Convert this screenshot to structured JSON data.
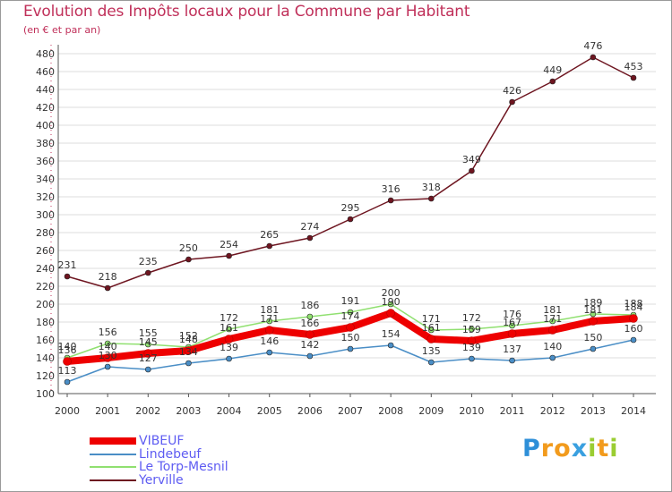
{
  "header": {
    "title": "Evolution des Impôts locaux pour la Commune par Habitant",
    "subtitle": "(en € et par an)"
  },
  "chart_data": {
    "type": "line",
    "title": "Evolution des Impôts locaux pour la Commune par Habitant",
    "subtitle": "(en € et par an)",
    "xlabel": "",
    "ylabel": "",
    "ylim": [
      100,
      480
    ],
    "yticks": [
      100,
      120,
      140,
      160,
      180,
      200,
      220,
      240,
      260,
      280,
      300,
      320,
      340,
      360,
      380,
      400,
      420,
      440,
      460,
      480
    ],
    "x": [
      "2000",
      "2001",
      "2002",
      "2003",
      "2004",
      "2005",
      "2006",
      "2007",
      "2008",
      "2009",
      "2010",
      "2011",
      "2012",
      "2013",
      "2014"
    ],
    "grid": true,
    "legend_position": "bottom-left",
    "series": [
      {
        "name": "Yerville",
        "color": "#6e1520",
        "values": [
          231,
          218,
          235,
          250,
          254,
          265,
          274,
          295,
          316,
          318,
          349,
          426,
          449,
          476,
          453
        ]
      },
      {
        "name": "Le Torp-Mesnil",
        "color": "#90e070",
        "values": [
          140,
          156,
          155,
          152,
          172,
          181,
          186,
          191,
          200,
          171,
          172,
          176,
          181,
          189,
          188
        ]
      },
      {
        "name": "Lindebeuf",
        "color": "#4a8ec6",
        "values": [
          113,
          130,
          127,
          134,
          139,
          146,
          142,
          150,
          154,
          135,
          139,
          137,
          140,
          150,
          160
        ]
      },
      {
        "name": "VIBEUF",
        "color": "#ee0000",
        "values": [
          136,
          140,
          145,
          148,
          161,
          171,
          166,
          174,
          190,
          161,
          159,
          167,
          171,
          181,
          184
        ]
      }
    ]
  },
  "legend": {
    "items": [
      {
        "label": "VIBEUF",
        "color": "#ee0000"
      },
      {
        "label": "Lindebeuf",
        "color": "#4a8ec6"
      },
      {
        "label": "Le Torp-Mesnil",
        "color": "#90e070"
      },
      {
        "label": "Yerville",
        "color": "#6e1520"
      }
    ]
  },
  "logo": {
    "letters": [
      "P",
      "r",
      "o",
      "x",
      "i",
      "t",
      "i"
    ],
    "colors": [
      "#2e8fd8",
      "#f29b1d",
      "#f29b1d",
      "#3aa0e0",
      "#9acd32",
      "#f29b1d",
      "#9acd32"
    ]
  }
}
